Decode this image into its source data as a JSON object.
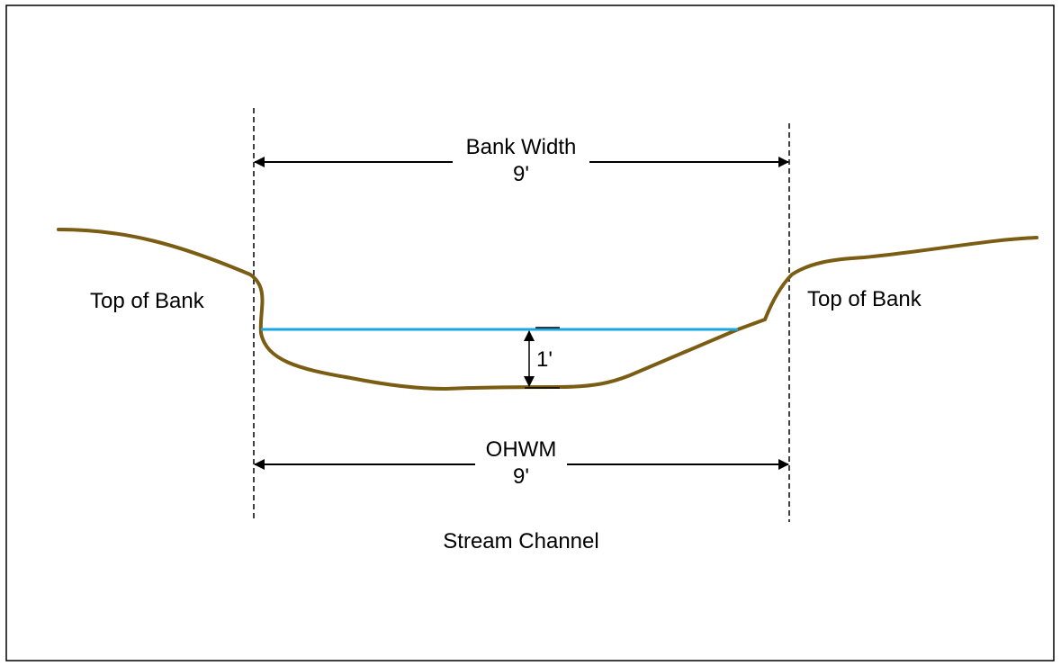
{
  "labels": {
    "bank_width": "Bank Width",
    "bank_width_value": "9'",
    "ohwm": "OHWM",
    "ohwm_value": "9'",
    "depth_value": "1'",
    "top_of_bank_left": "Top of Bank",
    "top_of_bank_right": "Top of Bank",
    "caption": "Stream Channel"
  },
  "colors": {
    "bank_line": "#7a5c12",
    "water_line": "#1aa7e0",
    "dimension_line": "#000000",
    "frame": "#000000"
  }
}
